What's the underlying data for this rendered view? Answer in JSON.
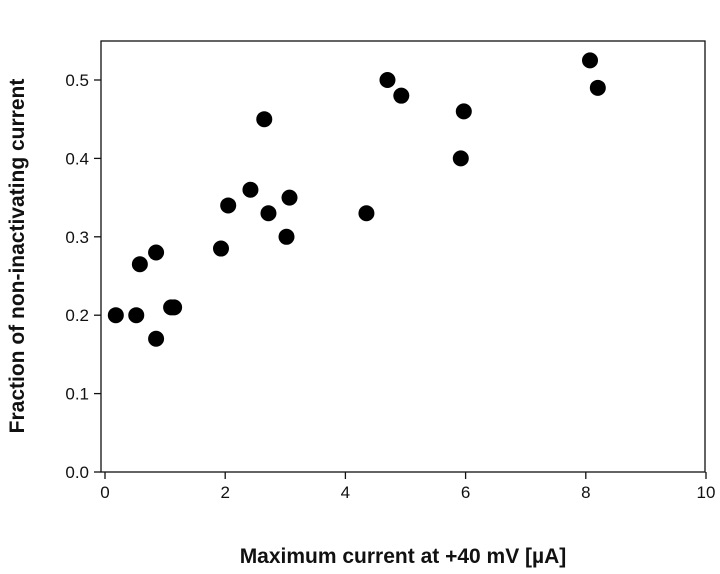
{
  "chart_data": {
    "type": "scatter",
    "xlabel": "Maximum current at +40 mV [µA]",
    "ylabel": "Fraction of non-inactivating current",
    "xlim": [
      0,
      10
    ],
    "ylim": [
      0,
      0.55
    ],
    "xticks": [
      0,
      2,
      4,
      6,
      8,
      10
    ],
    "yticks": [
      0.0,
      0.1,
      0.2,
      0.3,
      0.4,
      0.5
    ],
    "xtick_labels": [
      "0",
      "2",
      "4",
      "6",
      "8",
      "10"
    ],
    "ytick_labels": [
      "0.0",
      "0.1",
      "0.2",
      "0.3",
      "0.4",
      "0.5"
    ],
    "grid": false,
    "marker_color": "#000000",
    "series": [
      {
        "points": [
          {
            "x": 0.18,
            "y": 0.2
          },
          {
            "x": 0.52,
            "y": 0.2
          },
          {
            "x": 0.58,
            "y": 0.265
          },
          {
            "x": 0.85,
            "y": 0.28
          },
          {
            "x": 0.85,
            "y": 0.17
          },
          {
            "x": 1.1,
            "y": 0.21
          },
          {
            "x": 1.15,
            "y": 0.21
          },
          {
            "x": 1.93,
            "y": 0.285
          },
          {
            "x": 2.05,
            "y": 0.34
          },
          {
            "x": 2.42,
            "y": 0.36
          },
          {
            "x": 2.65,
            "y": 0.45
          },
          {
            "x": 2.72,
            "y": 0.33
          },
          {
            "x": 3.02,
            "y": 0.3
          },
          {
            "x": 3.07,
            "y": 0.35
          },
          {
            "x": 4.35,
            "y": 0.33
          },
          {
            "x": 4.7,
            "y": 0.5
          },
          {
            "x": 4.93,
            "y": 0.48
          },
          {
            "x": 5.92,
            "y": 0.4
          },
          {
            "x": 5.97,
            "y": 0.46
          },
          {
            "x": 8.07,
            "y": 0.525
          },
          {
            "x": 8.2,
            "y": 0.49
          }
        ]
      }
    ]
  }
}
